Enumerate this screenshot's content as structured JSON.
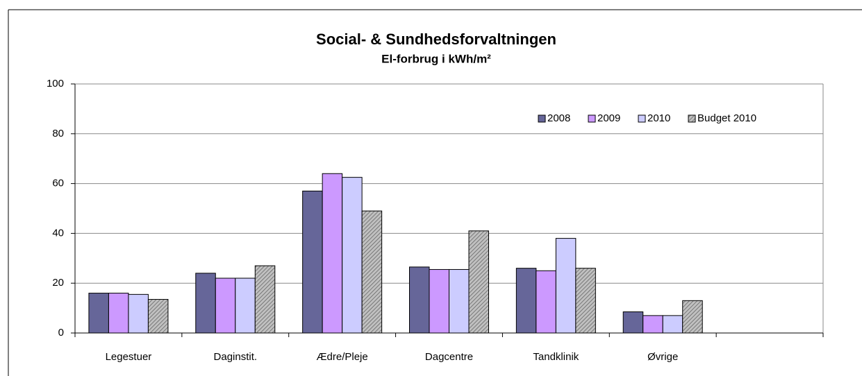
{
  "chart_data": {
    "type": "bar",
    "title": "Social- & Sundhedsforvaltningen",
    "subtitle": "El-forbrug i kWh/m²",
    "categories": [
      "Legestuer",
      "Daginstit.",
      "Ædre/Pleje",
      "Dagcentre",
      "Tandklinik",
      "Øvrige",
      null
    ],
    "series": [
      {
        "name": "2008",
        "color": "#666699",
        "values": [
          16,
          24,
          57,
          26.5,
          26,
          8.5,
          null
        ]
      },
      {
        "name": "2009",
        "color": "#cc99ff",
        "values": [
          16,
          22,
          64,
          25.5,
          25,
          7,
          null
        ]
      },
      {
        "name": "2010",
        "color": "#ccccff",
        "values": [
          15.5,
          22,
          62.5,
          25.5,
          38,
          7,
          null
        ]
      },
      {
        "name": "Budget 2010",
        "color": "#c0c0c0",
        "hatch": true,
        "values": [
          13.5,
          27,
          49,
          41,
          26,
          13,
          null
        ]
      }
    ],
    "ylim": [
      0,
      100
    ],
    "yticks": [
      0,
      20,
      40,
      60,
      80,
      100
    ],
    "grid": true,
    "legend": "upper right"
  }
}
